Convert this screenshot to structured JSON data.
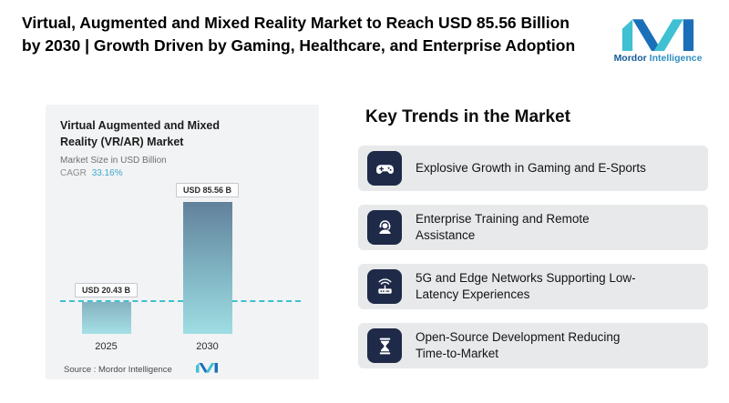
{
  "header": {
    "title": "Virtual, Augmented and Mixed Reality Market to Reach USD 85.56 Billion by 2030 | Growth Driven by Gaming, Healthcare, and Enterprise Adoption"
  },
  "brand": {
    "name_primary": "Mordor",
    "name_secondary": "Intelligence"
  },
  "chart_card": {
    "title": "Virtual Augmented and Mixed Reality (VR/AR) Market",
    "subtitle": "Market Size in USD Billion",
    "cagr_label": "CAGR",
    "cagr_value": "33.16%",
    "source": "Source :  Mordor Intelligence"
  },
  "chart_data": {
    "type": "bar",
    "title": "Virtual Augmented and Mixed Reality (VR/AR) Market",
    "ylabel": "Market Size in USD Billion",
    "unit": "USD Billion",
    "cagr_percent": 33.16,
    "categories": [
      "2025",
      "2030"
    ],
    "values": [
      20.43,
      85.56
    ],
    "value_labels": [
      "USD 20.43 B",
      "USD 85.56 B"
    ],
    "ylim": [
      0,
      100
    ],
    "grid": false,
    "annotations": [
      "dashed teal reference line at the 2025 value"
    ],
    "source": "Mordor Intelligence"
  },
  "trends": {
    "heading": "Key Trends in the Market",
    "items": [
      {
        "icon": "gamepad-icon",
        "label": "Explosive Growth in Gaming and E-Sports"
      },
      {
        "icon": "support-agent-icon",
        "label": "Enterprise Training and Remote\nAssistance"
      },
      {
        "icon": "router-icon",
        "label": "5G and Edge Networks Supporting Low-\nLatency Experiences"
      },
      {
        "icon": "hourglass-icon",
        "label": "Open-Source Development Reducing\nTime-to-Market"
      }
    ]
  },
  "colors": {
    "accent_teal": "#3cc0d0",
    "brand_blue": "#1b6fb8",
    "brand_navy": "#155a96",
    "icon_tile_navy": "#1e2a47",
    "card_bg": "#f2f3f5",
    "trend_row_bg": "#e8e9eb",
    "bar_gradient_top": "#62819b",
    "bar_gradient_bottom": "#9fdde3"
  }
}
